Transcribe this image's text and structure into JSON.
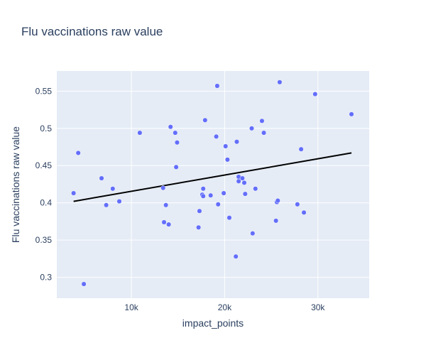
{
  "chart_data": {
    "type": "scatter",
    "title": "Flu vaccinations raw value",
    "xlabel": "impact_points",
    "ylabel": "Flu vaccinations raw value",
    "xlim": [
      2000,
      35500
    ],
    "ylim": [
      0.272,
      0.577
    ],
    "x_ticks": [
      {
        "value": 10000,
        "label": "10k"
      },
      {
        "value": 20000,
        "label": "20k"
      },
      {
        "value": 30000,
        "label": "30k"
      }
    ],
    "y_ticks": [
      {
        "value": 0.3,
        "label": "0.3"
      },
      {
        "value": 0.35,
        "label": "0.35"
      },
      {
        "value": 0.4,
        "label": "0.4"
      },
      {
        "value": 0.45,
        "label": "0.45"
      },
      {
        "value": 0.5,
        "label": "0.5"
      },
      {
        "value": 0.55,
        "label": "0.55"
      }
    ],
    "grid": true,
    "marker_color": "#636efa",
    "trendline_color": "#000000",
    "points": [
      {
        "x": 3800,
        "y": 0.413
      },
      {
        "x": 4300,
        "y": 0.467
      },
      {
        "x": 4900,
        "y": 0.291
      },
      {
        "x": 6800,
        "y": 0.433
      },
      {
        "x": 7300,
        "y": 0.397
      },
      {
        "x": 8000,
        "y": 0.419
      },
      {
        "x": 8700,
        "y": 0.402
      },
      {
        "x": 10900,
        "y": 0.494
      },
      {
        "x": 13400,
        "y": 0.42
      },
      {
        "x": 13500,
        "y": 0.374
      },
      {
        "x": 13700,
        "y": 0.397
      },
      {
        "x": 14000,
        "y": 0.371
      },
      {
        "x": 14200,
        "y": 0.502
      },
      {
        "x": 14700,
        "y": 0.494
      },
      {
        "x": 14800,
        "y": 0.448
      },
      {
        "x": 14900,
        "y": 0.481
      },
      {
        "x": 17200,
        "y": 0.367
      },
      {
        "x": 17300,
        "y": 0.389
      },
      {
        "x": 17600,
        "y": 0.411
      },
      {
        "x": 17700,
        "y": 0.409
      },
      {
        "x": 17700,
        "y": 0.419
      },
      {
        "x": 17900,
        "y": 0.511
      },
      {
        "x": 18500,
        "y": 0.41
      },
      {
        "x": 19100,
        "y": 0.489
      },
      {
        "x": 19200,
        "y": 0.557
      },
      {
        "x": 19300,
        "y": 0.398
      },
      {
        "x": 19900,
        "y": 0.413
      },
      {
        "x": 20100,
        "y": 0.476
      },
      {
        "x": 20300,
        "y": 0.458
      },
      {
        "x": 20500,
        "y": 0.38
      },
      {
        "x": 21200,
        "y": 0.328
      },
      {
        "x": 21300,
        "y": 0.482
      },
      {
        "x": 21500,
        "y": 0.435
      },
      {
        "x": 21500,
        "y": 0.429
      },
      {
        "x": 21900,
        "y": 0.433
      },
      {
        "x": 22100,
        "y": 0.427
      },
      {
        "x": 22200,
        "y": 0.412
      },
      {
        "x": 22900,
        "y": 0.5
      },
      {
        "x": 23000,
        "y": 0.359
      },
      {
        "x": 23300,
        "y": 0.419
      },
      {
        "x": 24000,
        "y": 0.51
      },
      {
        "x": 24200,
        "y": 0.494
      },
      {
        "x": 25500,
        "y": 0.376
      },
      {
        "x": 25600,
        "y": 0.401
      },
      {
        "x": 25700,
        "y": 0.403
      },
      {
        "x": 25900,
        "y": 0.562
      },
      {
        "x": 27800,
        "y": 0.398
      },
      {
        "x": 28200,
        "y": 0.472
      },
      {
        "x": 28500,
        "y": 0.387
      },
      {
        "x": 29700,
        "y": 0.546
      },
      {
        "x": 33600,
        "y": 0.519
      }
    ],
    "trendline": {
      "x": [
        3800,
        33600
      ],
      "y": [
        0.402,
        0.467
      ]
    }
  }
}
